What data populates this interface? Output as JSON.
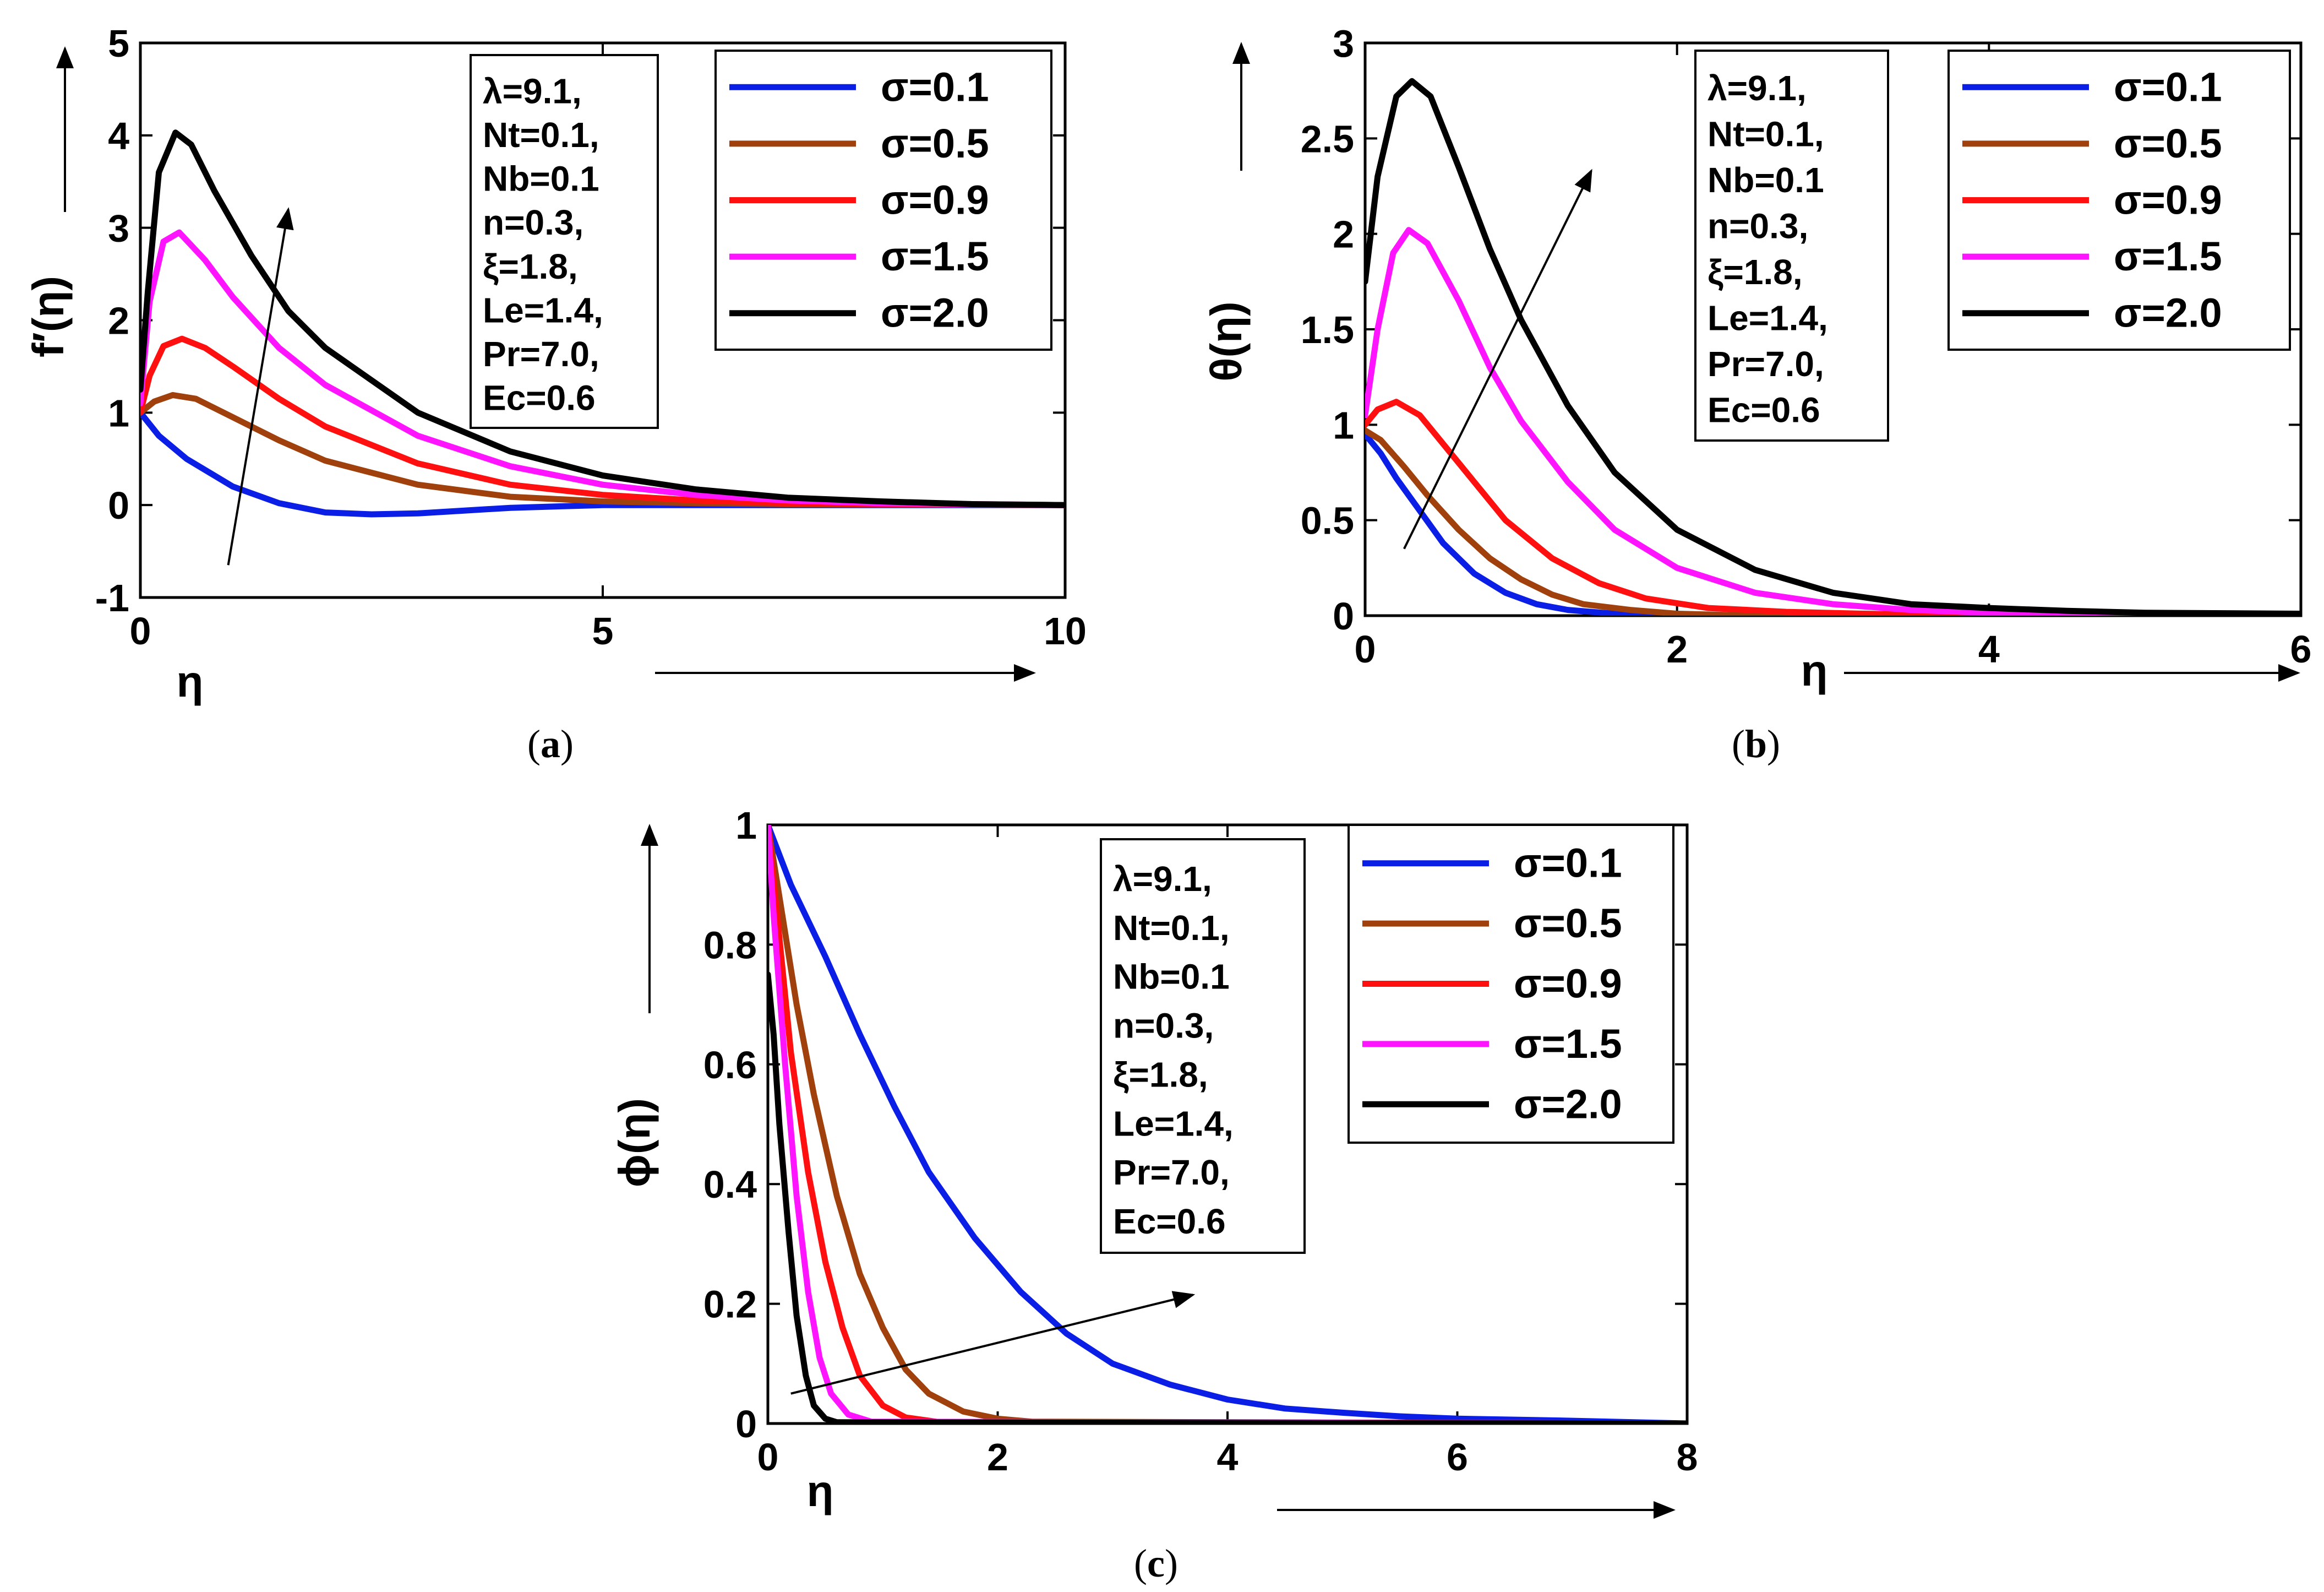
{
  "colors": {
    "sigma_0.1": "#0a1ee6",
    "sigma_0.5": "#a0400c",
    "sigma_0.9": "#ff1010",
    "sigma_1.5": "#ff14ff",
    "sigma_2.0": "#000000"
  },
  "chart_data": [
    {
      "id": "a",
      "type": "line",
      "caption_open": "(",
      "caption_letter": "a",
      "caption_close": ")",
      "xlabel": "η",
      "ylabel": "f′(η)",
      "xlim": [
        0,
        10
      ],
      "ylim": [
        -1,
        5
      ],
      "xticks": [
        0,
        5,
        10
      ],
      "yticks": [
        -1,
        0,
        1,
        2,
        3,
        4,
        5
      ],
      "xtick_labels": [
        "0",
        "5",
        "10"
      ],
      "ytick_labels": [
        "-1",
        "0",
        "1",
        "2",
        "3",
        "4",
        "5"
      ],
      "params": [
        "λ=9.1,",
        "Nt=0.1,",
        "Nb=0.1",
        "n=0.3,",
        "ξ=1.8,",
        "Le=1.4,",
        "Pr=7.0,",
        "Ec=0.6"
      ],
      "trend_arrow": {
        "from": [
          0.95,
          -0.65
        ],
        "to": [
          1.6,
          3.2
        ]
      },
      "series": [
        {
          "name": "σ=0.1",
          "color_key": "sigma_0.1",
          "points": [
            [
              0,
              1.0
            ],
            [
              0.2,
              0.75
            ],
            [
              0.5,
              0.5
            ],
            [
              1,
              0.2
            ],
            [
              1.5,
              0.02
            ],
            [
              2,
              -0.08
            ],
            [
              2.5,
              -0.1
            ],
            [
              3,
              -0.09
            ],
            [
              3.5,
              -0.06
            ],
            [
              4,
              -0.03
            ],
            [
              5,
              0
            ],
            [
              10,
              0
            ]
          ]
        },
        {
          "name": "σ=0.5",
          "color_key": "sigma_0.5",
          "points": [
            [
              0,
              1.0
            ],
            [
              0.15,
              1.12
            ],
            [
              0.35,
              1.19
            ],
            [
              0.6,
              1.15
            ],
            [
              1,
              0.95
            ],
            [
              1.5,
              0.7
            ],
            [
              2,
              0.48
            ],
            [
              3,
              0.22
            ],
            [
              4,
              0.09
            ],
            [
              5,
              0.04
            ],
            [
              6,
              0.02
            ],
            [
              7,
              0.01
            ],
            [
              10,
              0
            ]
          ]
        },
        {
          "name": "σ=0.9",
          "color_key": "sigma_0.9",
          "points": [
            [
              0,
              1.0
            ],
            [
              0.1,
              1.4
            ],
            [
              0.25,
              1.72
            ],
            [
              0.45,
              1.8
            ],
            [
              0.7,
              1.7
            ],
            [
              1,
              1.5
            ],
            [
              1.5,
              1.15
            ],
            [
              2,
              0.85
            ],
            [
              3,
              0.45
            ],
            [
              4,
              0.22
            ],
            [
              5,
              0.11
            ],
            [
              6,
              0.05
            ],
            [
              7,
              0.02
            ],
            [
              8,
              0.01
            ],
            [
              10,
              0
            ]
          ]
        },
        {
          "name": "σ=1.5",
          "color_key": "sigma_1.5",
          "points": [
            [
              0,
              1.1
            ],
            [
              0.1,
              2.2
            ],
            [
              0.25,
              2.85
            ],
            [
              0.42,
              2.95
            ],
            [
              0.7,
              2.65
            ],
            [
              1,
              2.25
            ],
            [
              1.5,
              1.7
            ],
            [
              2,
              1.3
            ],
            [
              3,
              0.75
            ],
            [
              4,
              0.42
            ],
            [
              5,
              0.22
            ],
            [
              6,
              0.11
            ],
            [
              7,
              0.05
            ],
            [
              8,
              0.02
            ],
            [
              10,
              0
            ]
          ]
        },
        {
          "name": "σ=2.0",
          "color_key": "sigma_2.0",
          "points": [
            [
              0,
              1.25
            ],
            [
              0.08,
              2.3
            ],
            [
              0.2,
              3.6
            ],
            [
              0.38,
              4.03
            ],
            [
              0.55,
              3.9
            ],
            [
              0.8,
              3.4
            ],
            [
              1.2,
              2.7
            ],
            [
              1.6,
              2.1
            ],
            [
              2,
              1.7
            ],
            [
              3,
              1.0
            ],
            [
              4,
              0.58
            ],
            [
              5,
              0.32
            ],
            [
              6,
              0.17
            ],
            [
              7,
              0.08
            ],
            [
              8,
              0.04
            ],
            [
              9,
              0.01
            ],
            [
              10,
              0
            ]
          ]
        }
      ]
    },
    {
      "id": "b",
      "type": "line",
      "caption_open": "(",
      "caption_letter": "b",
      "caption_close": ")",
      "xlabel": "η",
      "ylabel": "θ(η)",
      "xlim": [
        0,
        6
      ],
      "ylim": [
        0,
        3
      ],
      "xticks": [
        0,
        2,
        4,
        6
      ],
      "yticks": [
        0,
        0.5,
        1,
        1.5,
        2,
        2.5,
        3
      ],
      "xtick_labels": [
        "0",
        "2",
        "4",
        "6"
      ],
      "ytick_labels": [
        "0",
        "0.5",
        "1",
        "1.5",
        "2",
        "2.5",
        "3"
      ],
      "params": [
        "λ=9.1,",
        "Nt=0.1,",
        "Nb=0.1",
        "n=0.3,",
        "ξ=1.8,",
        "Le=1.4,",
        "Pr=7.0,",
        "Ec=0.6"
      ],
      "trend_arrow": {
        "from": [
          0.25,
          0.35
        ],
        "to": [
          1.45,
          2.33
        ]
      },
      "series": [
        {
          "name": "σ=0.1",
          "color_key": "sigma_0.1",
          "points": [
            [
              0,
              0.95
            ],
            [
              0.1,
              0.85
            ],
            [
              0.2,
              0.72
            ],
            [
              0.35,
              0.55
            ],
            [
              0.5,
              0.38
            ],
            [
              0.7,
              0.22
            ],
            [
              0.9,
              0.12
            ],
            [
              1.1,
              0.06
            ],
            [
              1.3,
              0.03
            ],
            [
              1.6,
              0.01
            ],
            [
              2,
              0
            ],
            [
              6,
              0
            ]
          ]
        },
        {
          "name": "σ=0.5",
          "color_key": "sigma_0.5",
          "points": [
            [
              0,
              0.97
            ],
            [
              0.1,
              0.92
            ],
            [
              0.25,
              0.78
            ],
            [
              0.4,
              0.63
            ],
            [
              0.6,
              0.45
            ],
            [
              0.8,
              0.3
            ],
            [
              1,
              0.19
            ],
            [
              1.2,
              0.11
            ],
            [
              1.4,
              0.06
            ],
            [
              1.7,
              0.03
            ],
            [
              2,
              0.01
            ],
            [
              2.5,
              0
            ],
            [
              6,
              0
            ]
          ]
        },
        {
          "name": "σ=0.9",
          "color_key": "sigma_0.9",
          "points": [
            [
              0,
              1.0
            ],
            [
              0.08,
              1.08
            ],
            [
              0.2,
              1.12
            ],
            [
              0.35,
              1.05
            ],
            [
              0.5,
              0.9
            ],
            [
              0.7,
              0.7
            ],
            [
              0.9,
              0.5
            ],
            [
              1.2,
              0.3
            ],
            [
              1.5,
              0.17
            ],
            [
              1.8,
              0.09
            ],
            [
              2.2,
              0.04
            ],
            [
              2.7,
              0.02
            ],
            [
              3.2,
              0.01
            ],
            [
              4,
              0
            ],
            [
              6,
              0
            ]
          ]
        },
        {
          "name": "σ=1.5",
          "color_key": "sigma_1.5",
          "points": [
            [
              0,
              1.05
            ],
            [
              0.08,
              1.5
            ],
            [
              0.18,
              1.9
            ],
            [
              0.28,
              2.02
            ],
            [
              0.4,
              1.95
            ],
            [
              0.6,
              1.65
            ],
            [
              0.8,
              1.3
            ],
            [
              1,
              1.02
            ],
            [
              1.3,
              0.7
            ],
            [
              1.6,
              0.45
            ],
            [
              2,
              0.25
            ],
            [
              2.5,
              0.12
            ],
            [
              3,
              0.06
            ],
            [
              3.5,
              0.03
            ],
            [
              4,
              0.015
            ],
            [
              4.7,
              0.01
            ],
            [
              6,
              0
            ]
          ]
        },
        {
          "name": "σ=2.0",
          "color_key": "sigma_2.0",
          "points": [
            [
              0,
              1.75
            ],
            [
              0.08,
              2.3
            ],
            [
              0.2,
              2.72
            ],
            [
              0.3,
              2.8
            ],
            [
              0.42,
              2.72
            ],
            [
              0.6,
              2.35
            ],
            [
              0.8,
              1.92
            ],
            [
              1,
              1.55
            ],
            [
              1.3,
              1.1
            ],
            [
              1.6,
              0.75
            ],
            [
              2,
              0.45
            ],
            [
              2.5,
              0.24
            ],
            [
              3,
              0.12
            ],
            [
              3.5,
              0.06
            ],
            [
              4,
              0.04
            ],
            [
              4.5,
              0.025
            ],
            [
              5,
              0.015
            ],
            [
              6,
              0.01
            ]
          ]
        }
      ]
    },
    {
      "id": "c",
      "type": "line",
      "caption_open": "(",
      "caption_letter": "c",
      "caption_close": ")",
      "xlabel": "η",
      "ylabel": "ϕ(η)",
      "xlim": [
        0,
        8
      ],
      "ylim": [
        0,
        1
      ],
      "xticks": [
        0,
        2,
        4,
        6,
        8
      ],
      "yticks": [
        0,
        0.2,
        0.4,
        0.6,
        0.8,
        1
      ],
      "xtick_labels": [
        "0",
        "2",
        "4",
        "6",
        "8"
      ],
      "ytick_labels": [
        "0",
        "0.2",
        "0.4",
        "0.6",
        "0.8",
        "1"
      ],
      "params": [
        "λ=9.1,",
        "Nt=0.1,",
        "Nb=0.1",
        "n=0.3,",
        "ξ=1.8,",
        "Le=1.4,",
        "Pr=7.0,",
        "Ec=0.6"
      ],
      "trend_arrow": {
        "from": [
          0.2,
          0.05
        ],
        "to": [
          3.7,
          0.215
        ]
      },
      "series": [
        {
          "name": "σ=0.1",
          "color_key": "sigma_0.1",
          "points": [
            [
              0,
              1.0
            ],
            [
              0.2,
              0.9
            ],
            [
              0.5,
              0.78
            ],
            [
              0.8,
              0.65
            ],
            [
              1.1,
              0.53
            ],
            [
              1.4,
              0.42
            ],
            [
              1.8,
              0.31
            ],
            [
              2.2,
              0.22
            ],
            [
              2.6,
              0.15
            ],
            [
              3,
              0.1
            ],
            [
              3.5,
              0.065
            ],
            [
              4,
              0.04
            ],
            [
              4.5,
              0.025
            ],
            [
              5,
              0.018
            ],
            [
              5.5,
              0.012
            ],
            [
              6,
              0.008
            ],
            [
              6.9,
              0.005
            ],
            [
              8,
              0
            ]
          ]
        },
        {
          "name": "σ=0.5",
          "color_key": "sigma_0.5",
          "points": [
            [
              0,
              1.0
            ],
            [
              0.1,
              0.88
            ],
            [
              0.25,
              0.7
            ],
            [
              0.4,
              0.55
            ],
            [
              0.6,
              0.38
            ],
            [
              0.8,
              0.25
            ],
            [
              1,
              0.16
            ],
            [
              1.2,
              0.09
            ],
            [
              1.4,
              0.05
            ],
            [
              1.7,
              0.02
            ],
            [
              2,
              0.008
            ],
            [
              2.3,
              0.003
            ],
            [
              8,
              0
            ]
          ]
        },
        {
          "name": "σ=0.9",
          "color_key": "sigma_0.9",
          "points": [
            [
              0,
              1.0
            ],
            [
              0.08,
              0.85
            ],
            [
              0.2,
              0.62
            ],
            [
              0.35,
              0.42
            ],
            [
              0.5,
              0.27
            ],
            [
              0.65,
              0.16
            ],
            [
              0.8,
              0.08
            ],
            [
              1,
              0.03
            ],
            [
              1.2,
              0.01
            ],
            [
              1.5,
              0.002
            ],
            [
              8,
              0
            ]
          ]
        },
        {
          "name": "σ=1.5",
          "color_key": "sigma_1.5",
          "points": [
            [
              0,
              1.0
            ],
            [
              0.05,
              0.85
            ],
            [
              0.15,
              0.6
            ],
            [
              0.25,
              0.38
            ],
            [
              0.35,
              0.22
            ],
            [
              0.45,
              0.11
            ],
            [
              0.55,
              0.05
            ],
            [
              0.7,
              0.015
            ],
            [
              0.9,
              0.003
            ],
            [
              8,
              0
            ]
          ]
        },
        {
          "name": "σ=2.0",
          "color_key": "sigma_2.0",
          "points": [
            [
              0,
              0.75
            ],
            [
              0.05,
              0.65
            ],
            [
              0.1,
              0.5
            ],
            [
              0.18,
              0.32
            ],
            [
              0.25,
              0.18
            ],
            [
              0.33,
              0.08
            ],
            [
              0.4,
              0.03
            ],
            [
              0.5,
              0.008
            ],
            [
              0.6,
              0.002
            ],
            [
              8,
              0
            ]
          ]
        }
      ]
    }
  ]
}
